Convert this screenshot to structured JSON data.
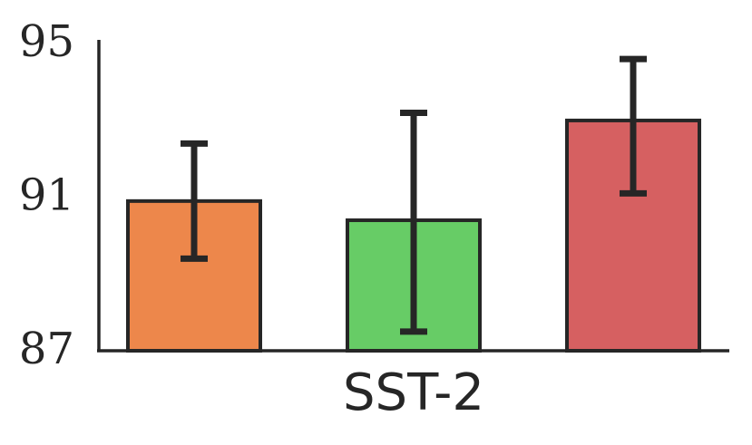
{
  "chart_data": {
    "type": "bar",
    "categories": [
      "SST-2"
    ],
    "series": [
      {
        "value": 90.8,
        "err_low": 89.3,
        "err_high": 92.3,
        "color": "#ed874b"
      },
      {
        "value": 90.3,
        "err_low": 87.4,
        "err_high": 93.1,
        "color": "#67cc66"
      },
      {
        "value": 92.9,
        "err_low": 91.0,
        "err_high": 94.5,
        "color": "#d66061"
      }
    ],
    "yticks": [
      "87",
      "91",
      "95"
    ],
    "ytick_values": [
      87,
      91,
      95
    ],
    "ylim": [
      86.9,
      95
    ],
    "xlabel": "",
    "ylabel": "",
    "title": "",
    "grid": false,
    "legend": "none"
  }
}
